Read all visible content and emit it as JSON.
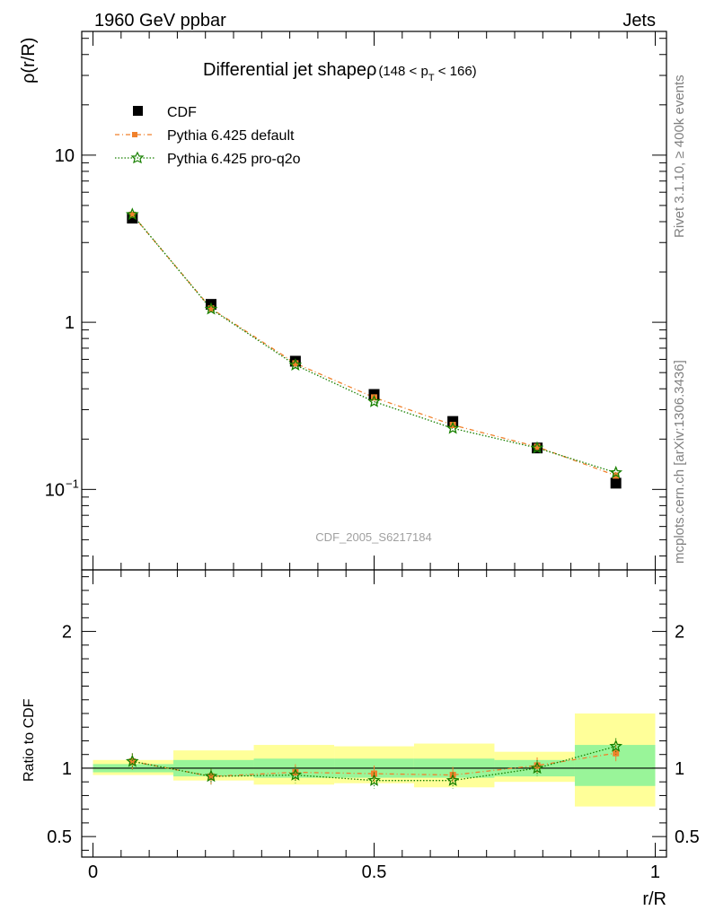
{
  "header": {
    "left": "1960 GeV ppbar",
    "right": "Jets"
  },
  "side_labels": {
    "rivet": "Rivet 3.1.10, ≥ 400k events",
    "mcplots": "mcplots.cern.ch [arXiv:1306.3436]"
  },
  "chart_data": [
    {
      "type": "scatter",
      "title": "Differential jet shapeρ",
      "title_cut": "(148 < p",
      "title_cut_sub": "T",
      "title_cut_end": " < 166)",
      "ylabel": "ρ(r/R)",
      "xlabel": "",
      "yscale": "log",
      "ylim": [
        0.033,
        55
      ],
      "xlim": [
        -0.02,
        1.02
      ],
      "yticks": [
        {
          "value": 10,
          "label": "10"
        },
        {
          "value": 1,
          "label": "1"
        },
        {
          "value": 0.1,
          "label": "10",
          "sup": "−1"
        }
      ],
      "watermark": "CDF_2005_S6217184",
      "legend": {
        "position": "top-left",
        "entries": [
          "CDF",
          "Pythia 6.425 default",
          "Pythia 6.425 pro-q2o"
        ]
      },
      "colors": {
        "cdf": "#000000",
        "default": "#f0812c",
        "proq2o": "#188000"
      },
      "x": [
        0.07,
        0.21,
        0.36,
        0.5,
        0.64,
        0.79,
        0.93
      ],
      "series": [
        {
          "name": "CDF",
          "values": [
            4.2,
            1.28,
            0.585,
            0.37,
            0.255,
            0.177,
            0.109
          ]
        },
        {
          "name": "Pythia 6.425 default",
          "values": [
            4.4,
            1.21,
            0.568,
            0.355,
            0.243,
            0.18,
            0.121
          ]
        },
        {
          "name": "Pythia 6.425 pro-q2o",
          "values": [
            4.42,
            1.2,
            0.555,
            0.335,
            0.232,
            0.177,
            0.126
          ]
        }
      ]
    },
    {
      "type": "scatter",
      "ylabel": "Ratio to CDF",
      "xlabel": "r/R",
      "ylim": [
        0.35,
        2.45
      ],
      "xlim": [
        -0.02,
        1.02
      ],
      "yticks": [
        {
          "value": 2,
          "label": "2"
        },
        {
          "value": 1,
          "label": "1"
        },
        {
          "value": 0.5,
          "label": "0.5"
        }
      ],
      "xticks": [
        {
          "value": 0,
          "label": "0"
        },
        {
          "value": 0.5,
          "label": "0.5"
        },
        {
          "value": 1,
          "label": "1"
        }
      ],
      "bins": [
        0,
        0.143,
        0.286,
        0.429,
        0.571,
        0.714,
        0.857,
        1.0
      ],
      "band_inner": [
        [
          0.97,
          1.03
        ],
        [
          0.94,
          1.06
        ],
        [
          0.93,
          1.07
        ],
        [
          0.93,
          1.07
        ],
        [
          0.93,
          1.07
        ],
        [
          0.94,
          1.06
        ],
        [
          0.87,
          1.17
        ]
      ],
      "band_outer": [
        [
          0.95,
          1.06
        ],
        [
          0.91,
          1.13
        ],
        [
          0.88,
          1.17
        ],
        [
          0.89,
          1.16
        ],
        [
          0.86,
          1.18
        ],
        [
          0.9,
          1.12
        ],
        [
          0.72,
          1.4
        ]
      ],
      "colors": {
        "inner": "#99f599",
        "outer": "#ffff99"
      },
      "x": [
        0.07,
        0.21,
        0.36,
        0.5,
        0.64,
        0.79,
        0.93
      ],
      "series": [
        {
          "name": "Pythia 6.425 default",
          "values": [
            1.05,
            0.94,
            0.97,
            0.96,
            0.95,
            1.02,
            1.11
          ]
        },
        {
          "name": "Pythia 6.425 pro-q2o",
          "values": [
            1.05,
            0.94,
            0.95,
            0.91,
            0.91,
            1.0,
            1.16
          ]
        }
      ]
    }
  ]
}
